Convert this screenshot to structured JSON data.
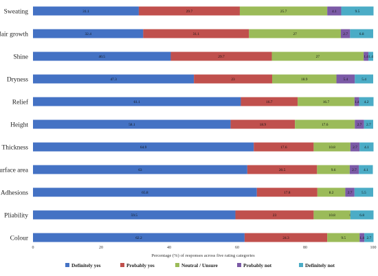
{
  "chart_data": {
    "type": "bar",
    "orientation": "horizontal",
    "stacked": true,
    "categories": [
      "Sweating",
      "Hair growth",
      "Shine",
      "Dryness",
      "Relief",
      "Height",
      "Thickness",
      "Surface area",
      "Adhesions",
      "Pliability",
      "Colour"
    ],
    "series": [
      {
        "name": "Definitely yes",
        "color": "#4472c4",
        "values": [
          31.1,
          32.4,
          40.5,
          47.3,
          61.1,
          58.1,
          64.9,
          63,
          65.8,
          59.5,
          62.2
        ]
      },
      {
        "name": "Probably yes",
        "color": "#c0504d",
        "values": [
          29.7,
          31.1,
          29.7,
          23,
          16.7,
          18.9,
          17.6,
          20.5,
          17.8,
          23,
          24.3
        ]
      },
      {
        "name": "Neutral / Unsure",
        "color": "#9bbb59",
        "values": [
          25.7,
          27,
          27,
          18.9,
          16.7,
          17.6,
          10.8,
          9.6,
          8.2,
          10.8,
          9.5
        ]
      },
      {
        "name": "Probably not",
        "color": "#7b5aa6",
        "values": [
          4.1,
          2.7,
          1.4,
          5.4,
          1.4,
          2.7,
          2.7,
          2.7,
          2.7,
          0,
          1.4
        ]
      },
      {
        "name": "Definitely not",
        "color": "#4bacc6",
        "values": [
          9.5,
          6.8,
          1.4,
          5.4,
          4.2,
          2.7,
          4.1,
          4.1,
          5.5,
          6.8,
          2.7
        ]
      }
    ],
    "value_labels": [
      [
        "31.1",
        "29.7",
        "25.7",
        "4.1",
        "9.5"
      ],
      [
        "32.4",
        "31.1",
        "27",
        "2.7",
        "6.8"
      ],
      [
        "40.5",
        "29.7",
        "27",
        "1.4",
        "1.4"
      ],
      [
        "47.3",
        "23",
        "18.9",
        "5.4",
        "5.4"
      ],
      [
        "61.1",
        "16.7",
        "16.7",
        "1.4",
        "4.2"
      ],
      [
        "58.1",
        "18.9",
        "17.6",
        "2.7",
        "2.7"
      ],
      [
        "64.9",
        "17.6",
        "10.8",
        "2.7",
        "4.1"
      ],
      [
        "63",
        "20.5",
        "9.6",
        "2.7",
        "4.1"
      ],
      [
        "65.8",
        "17.8",
        "8.2",
        "2.7",
        "5.5"
      ],
      [
        "59.5",
        "23",
        "10.8",
        "0",
        "6.8"
      ],
      [
        "62.2",
        "24.3",
        "9.5",
        "1.4",
        "2.7"
      ]
    ],
    "xlabel": "Percentage (%) of responses across five rating categories",
    "ylabel": "",
    "xlim": [
      0,
      100
    ],
    "xticks": [
      "0",
      "20",
      "40",
      "60",
      "80",
      "100"
    ],
    "grid": false,
    "legend_position": "bottom"
  }
}
